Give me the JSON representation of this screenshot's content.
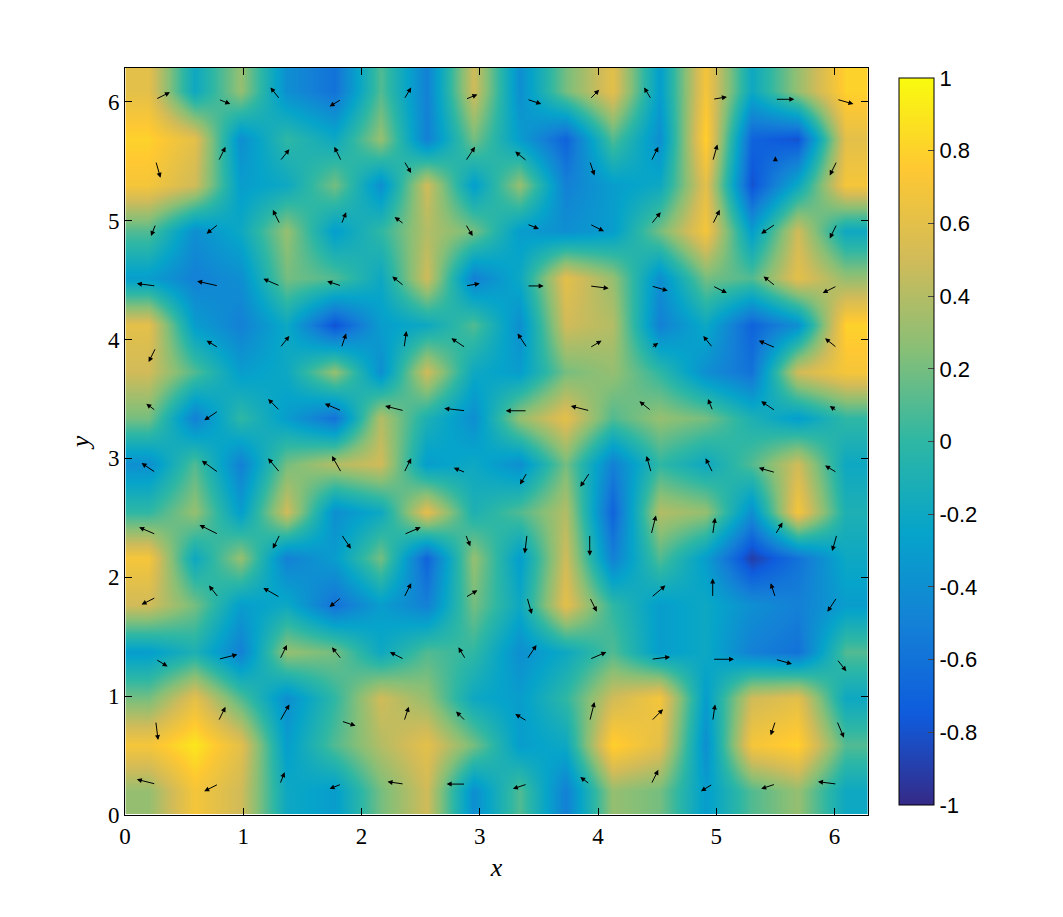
{
  "chart_data": {
    "type": "heatmap",
    "xlabel": "x",
    "ylabel": "y",
    "xlim": [
      0,
      6.2832
    ],
    "ylim": [
      0,
      6.2832
    ],
    "xticks": [
      0,
      1,
      2,
      3,
      4,
      5,
      6
    ],
    "yticks": [
      0,
      1,
      2,
      3,
      4,
      5,
      6
    ],
    "zlim": [
      -1,
      1
    ],
    "colorbar_ticks": [
      -1,
      -0.8,
      -0.6,
      -0.4,
      -0.2,
      0,
      0.2,
      0.4,
      0.6,
      0.8,
      1
    ],
    "x": [
      0.2,
      0.59,
      0.98,
      1.37,
      1.77,
      2.16,
      2.55,
      2.95,
      3.34,
      3.73,
      4.12,
      4.52,
      4.91,
      5.3,
      5.69,
      6.09
    ],
    "y": [
      0.2,
      0.59,
      0.98,
      1.37,
      1.77,
      2.16,
      2.55,
      2.95,
      3.34,
      3.73,
      4.12,
      4.52,
      4.91,
      5.3,
      5.69,
      6.09
    ],
    "z": [
      [
        0.3,
        0.7,
        0.5,
        -0.2,
        -0.3,
        0.2,
        0.5,
        -0.4,
        0.1,
        -0.5,
        0.3,
        0.2,
        -0.3,
        0.1,
        0.3,
        -0.2
      ],
      [
        0.7,
        0.9,
        0.6,
        -0.3,
        0.1,
        0.4,
        0.6,
        0.2,
        -0.3,
        -0.2,
        0.8,
        0.6,
        -0.4,
        0.7,
        0.8,
        0.1
      ],
      [
        0.2,
        0.6,
        0.1,
        -0.4,
        0.0,
        0.5,
        0.3,
        -0.2,
        -0.3,
        0.0,
        0.5,
        0.7,
        -0.3,
        0.5,
        0.6,
        -0.2
      ],
      [
        -0.3,
        -0.1,
        -0.5,
        0.3,
        0.2,
        -0.2,
        0.1,
        0.0,
        -0.4,
        -0.2,
        0.1,
        -0.3,
        -0.2,
        -0.5,
        -0.6,
        0.1
      ],
      [
        0.5,
        0.2,
        -0.3,
        -0.2,
        -0.6,
        -0.3,
        -0.5,
        0.2,
        -0.2,
        0.6,
        0.0,
        -0.3,
        -0.2,
        -0.4,
        -0.5,
        -0.3
      ],
      [
        0.7,
        -0.2,
        0.3,
        -0.5,
        -0.3,
        0.2,
        -0.7,
        0.3,
        -0.3,
        0.5,
        -0.5,
        0.1,
        -0.3,
        -0.9,
        -0.6,
        -0.2
      ],
      [
        0.0,
        0.3,
        -0.3,
        0.5,
        -0.4,
        -0.2,
        0.6,
        -0.1,
        0.1,
        0.4,
        -0.7,
        0.4,
        0.3,
        -0.4,
        0.7,
        -0.1
      ],
      [
        -0.4,
        0.1,
        -0.5,
        0.2,
        0.4,
        0.5,
        -0.3,
        -0.2,
        -0.4,
        0.2,
        -0.5,
        0.0,
        -0.2,
        0.1,
        0.5,
        -0.2
      ],
      [
        0.2,
        -0.5,
        0.0,
        -0.3,
        -0.6,
        0.4,
        -0.1,
        -0.4,
        0.3,
        0.6,
        0.1,
        0.3,
        0.2,
        -0.1,
        -0.3,
        0.0
      ],
      [
        0.5,
        0.1,
        -0.3,
        -0.2,
        0.3,
        -0.4,
        0.5,
        -0.2,
        -0.3,
        0.2,
        0.3,
        0.0,
        -0.4,
        -0.6,
        0.5,
        0.7
      ],
      [
        0.6,
        -0.3,
        -0.5,
        -0.2,
        -0.8,
        -0.3,
        -0.2,
        0.1,
        -0.4,
        0.5,
        0.4,
        -0.5,
        -0.2,
        -0.7,
        -0.4,
        0.8
      ],
      [
        -0.3,
        -0.5,
        -0.4,
        0.2,
        0.1,
        -0.2,
        0.5,
        -0.5,
        -0.2,
        0.6,
        0.3,
        -0.4,
        0.2,
        0.1,
        0.6,
        0.3
      ],
      [
        0.1,
        -0.4,
        -0.2,
        0.3,
        -0.3,
        0.0,
        0.4,
        0.2,
        -0.3,
        -0.4,
        -0.3,
        0.2,
        0.7,
        -0.3,
        0.5,
        -0.2
      ],
      [
        0.7,
        0.5,
        -0.3,
        -0.2,
        0.2,
        -0.4,
        0.5,
        -0.3,
        0.3,
        -0.5,
        -0.3,
        -0.2,
        0.6,
        -0.8,
        -0.2,
        0.7
      ],
      [
        0.8,
        0.6,
        -0.4,
        0.0,
        -0.2,
        0.3,
        -0.5,
        0.2,
        -0.3,
        -0.7,
        0.1,
        -0.4,
        0.8,
        -0.7,
        -0.8,
        0.6
      ],
      [
        0.6,
        -0.2,
        0.3,
        -0.4,
        -0.6,
        0.1,
        -0.5,
        0.5,
        -0.4,
        0.2,
        0.6,
        -0.3,
        0.7,
        -0.2,
        0.3,
        0.8
      ]
    ],
    "vectors": {
      "color": "#000000",
      "x": [
        0.26,
        0.79,
        1.31,
        1.83,
        2.36,
        2.88,
        3.4,
        3.93,
        4.45,
        4.97,
        5.5,
        6.02
      ],
      "y": [
        0.26,
        0.79,
        1.31,
        1.83,
        2.36,
        2.88,
        3.4,
        3.93,
        4.45,
        4.97,
        5.5,
        6.02
      ],
      "u": [
        [
          -0.8,
          -0.6,
          0.2,
          -0.5,
          -0.7,
          -0.8,
          -0.6,
          -0.4,
          0.3,
          -0.5,
          -0.6,
          -0.8
        ],
        [
          0.1,
          0.3,
          0.4,
          0.6,
          0.2,
          -0.4,
          -0.5,
          0.2,
          0.5,
          0.1,
          -0.2,
          0.3
        ],
        [
          0.5,
          0.8,
          0.3,
          -0.4,
          -0.6,
          -0.3,
          0.4,
          0.7,
          0.8,
          0.9,
          0.7,
          0.4
        ],
        [
          -0.6,
          -0.4,
          -0.7,
          -0.5,
          0.3,
          0.5,
          0.2,
          0.3,
          0.6,
          0.0,
          -0.2,
          -0.4
        ],
        [
          -0.7,
          -0.8,
          -0.3,
          0.4,
          0.7,
          0.2,
          -0.1,
          0.0,
          0.2,
          0.1,
          0.3,
          -0.2
        ],
        [
          -0.6,
          -0.7,
          -0.5,
          -0.4,
          0.3,
          -0.5,
          -0.3,
          -0.4,
          -0.2,
          -0.3,
          -0.7,
          -0.5
        ],
        [
          -0.4,
          -0.6,
          -0.5,
          -0.7,
          -0.8,
          -0.9,
          -0.9,
          -0.8,
          -0.5,
          -0.2,
          -0.6,
          -0.3
        ],
        [
          -0.3,
          -0.5,
          0.4,
          0.2,
          0.1,
          -0.6,
          -0.4,
          0.5,
          0.3,
          -0.4,
          -0.7,
          -0.5
        ],
        [
          -0.8,
          -0.9,
          -0.7,
          -0.6,
          -0.5,
          0.6,
          0.7,
          0.8,
          0.7,
          0.6,
          -0.5,
          -0.6
        ],
        [
          -0.2,
          -0.5,
          -0.3,
          0.2,
          -0.4,
          0.3,
          0.5,
          0.6,
          0.4,
          0.3,
          -0.6,
          -0.3
        ],
        [
          0.2,
          0.3,
          0.4,
          -0.3,
          0.3,
          0.4,
          -0.5,
          0.2,
          0.3,
          0.2,
          0.0,
          -0.3
        ],
        [
          0.6,
          0.5,
          -0.4,
          -0.5,
          0.3,
          0.5,
          0.6,
          0.4,
          -0.3,
          0.6,
          0.8,
          0.7
        ]
      ],
      "v": [
        [
          0.2,
          -0.3,
          0.5,
          -0.2,
          0.1,
          0.0,
          -0.2,
          0.3,
          0.6,
          -0.3,
          -0.2,
          0.1
        ],
        [
          -0.8,
          0.6,
          0.7,
          -0.2,
          0.6,
          0.4,
          0.3,
          0.8,
          0.5,
          0.7,
          -0.6,
          -0.7
        ],
        [
          -0.3,
          0.2,
          0.6,
          0.5,
          0.3,
          0.5,
          0.6,
          0.3,
          0.1,
          0.0,
          -0.2,
          -0.5
        ],
        [
          -0.3,
          0.5,
          0.4,
          -0.4,
          0.6,
          0.3,
          -0.7,
          -0.6,
          0.5,
          0.8,
          0.6,
          -0.6
        ],
        [
          0.3,
          0.4,
          -0.6,
          -0.6,
          0.3,
          -0.5,
          -0.8,
          -0.9,
          0.8,
          0.7,
          0.5,
          -0.7
        ],
        [
          0.4,
          0.5,
          0.6,
          0.7,
          0.6,
          0.2,
          -0.5,
          -0.6,
          0.7,
          0.6,
          0.2,
          0.3
        ],
        [
          0.3,
          -0.4,
          0.5,
          0.3,
          0.2,
          0.1,
          0.0,
          0.2,
          0.4,
          0.5,
          0.4,
          0.2
        ],
        [
          -0.6,
          0.3,
          0.5,
          0.6,
          0.7,
          0.4,
          0.6,
          0.3,
          0.2,
          0.5,
          0.3,
          0.4
        ],
        [
          0.1,
          0.2,
          0.3,
          0.2,
          0.4,
          0.1,
          0.0,
          -0.1,
          -0.2,
          -0.3,
          0.4,
          -0.3
        ],
        [
          -0.5,
          -0.4,
          0.6,
          0.5,
          0.3,
          -0.5,
          -0.2,
          -0.3,
          0.5,
          0.6,
          -0.4,
          -0.6
        ],
        [
          -0.7,
          0.6,
          0.5,
          0.6,
          -0.5,
          0.6,
          0.4,
          -0.6,
          0.6,
          0.7,
          0.2,
          -0.6
        ],
        [
          0.3,
          -0.2,
          0.5,
          -0.3,
          0.5,
          0.2,
          -0.2,
          0.4,
          0.5,
          0.1,
          0.0,
          -0.2
        ]
      ]
    }
  }
}
